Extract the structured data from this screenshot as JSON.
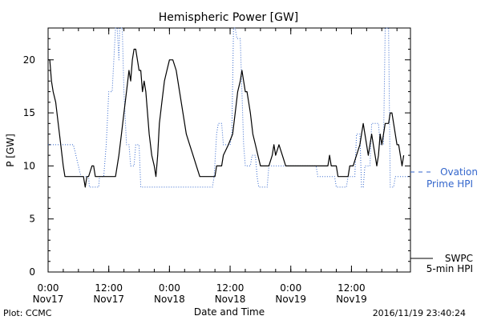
{
  "chart_data": {
    "type": "line",
    "title": "Hemispheric Power [GW]",
    "ylabel": "P [GW]",
    "xlabel": "Date and Time",
    "ylim": [
      0,
      23
    ],
    "xlim": [
      "2016-11-17 00:00",
      "2016-11-19 23:40"
    ],
    "grid": false,
    "legend_position": "right",
    "yticks": [
      0,
      5,
      10,
      15,
      20
    ],
    "xticks": [
      {
        "time": "2016-11-17 00:00",
        "line1": "0:00",
        "line2": "Nov17"
      },
      {
        "time": "2016-11-17 12:00",
        "line1": "12:00",
        "line2": "Nov17"
      },
      {
        "time": "2016-11-18 00:00",
        "line1": "0:00",
        "line2": "Nov18"
      },
      {
        "time": "2016-11-18 12:00",
        "line1": "12:00",
        "line2": "Nov18"
      },
      {
        "time": "2016-11-19 00:00",
        "line1": "0:00",
        "line2": "Nov19"
      },
      {
        "time": "2016-11-19 12:00",
        "line1": "12:00",
        "line2": "Nov19"
      }
    ],
    "series": [
      {
        "name": "SWPC 5-min HPI",
        "legend_lines": [
          "SWPC",
          "5-min HPI"
        ],
        "color": "#000000",
        "style": "solid",
        "points": [
          [
            "2016-11-17 00:00",
            20
          ],
          [
            "2016-11-17 00:20",
            20
          ],
          [
            "2016-11-17 00:40",
            18
          ],
          [
            "2016-11-17 01:00",
            17
          ],
          [
            "2016-11-17 01:30",
            16
          ],
          [
            "2016-11-17 02:00",
            14
          ],
          [
            "2016-11-17 02:30",
            12
          ],
          [
            "2016-11-17 03:00",
            10
          ],
          [
            "2016-11-17 03:20",
            9
          ],
          [
            "2016-11-17 07:00",
            9
          ],
          [
            "2016-11-17 07:20",
            8
          ],
          [
            "2016-11-17 07:40",
            9
          ],
          [
            "2016-11-17 08:00",
            9
          ],
          [
            "2016-11-17 08:40",
            10
          ],
          [
            "2016-11-17 09:00",
            10
          ],
          [
            "2016-11-17 09:20",
            9
          ],
          [
            "2016-11-17 13:20",
            9
          ],
          [
            "2016-11-17 13:40",
            10
          ],
          [
            "2016-11-17 14:00",
            11
          ],
          [
            "2016-11-17 14:30",
            13
          ],
          [
            "2016-11-17 15:00",
            15
          ],
          [
            "2016-11-17 15:30",
            17
          ],
          [
            "2016-11-17 16:00",
            19
          ],
          [
            "2016-11-17 16:20",
            18
          ],
          [
            "2016-11-17 16:40",
            20
          ],
          [
            "2016-11-17 17:00",
            21
          ],
          [
            "2016-11-17 17:20",
            21
          ],
          [
            "2016-11-17 17:40",
            20
          ],
          [
            "2016-11-17 18:00",
            19
          ],
          [
            "2016-11-17 18:20",
            19
          ],
          [
            "2016-11-17 18:40",
            17
          ],
          [
            "2016-11-17 19:00",
            18
          ],
          [
            "2016-11-17 19:20",
            17
          ],
          [
            "2016-11-17 19:40",
            15
          ],
          [
            "2016-11-17 20:00",
            13
          ],
          [
            "2016-11-17 20:30",
            11
          ],
          [
            "2016-11-17 21:00",
            10
          ],
          [
            "2016-11-17 21:20",
            9
          ],
          [
            "2016-11-17 21:40",
            11
          ],
          [
            "2016-11-17 22:00",
            14
          ],
          [
            "2016-11-17 22:30",
            16
          ],
          [
            "2016-11-17 23:00",
            18
          ],
          [
            "2016-11-17 23:30",
            19
          ],
          [
            "2016-11-18 00:00",
            20
          ],
          [
            "2016-11-18 00:40",
            20
          ],
          [
            "2016-11-18 01:20",
            19
          ],
          [
            "2016-11-18 02:00",
            17
          ],
          [
            "2016-11-18 02:40",
            15
          ],
          [
            "2016-11-18 03:20",
            13
          ],
          [
            "2016-11-18 04:00",
            12
          ],
          [
            "2016-11-18 04:40",
            11
          ],
          [
            "2016-11-18 05:20",
            10
          ],
          [
            "2016-11-18 06:00",
            9
          ],
          [
            "2016-11-18 09:00",
            9
          ],
          [
            "2016-11-18 09:20",
            10
          ],
          [
            "2016-11-18 10:20",
            10
          ],
          [
            "2016-11-18 10:40",
            11
          ],
          [
            "2016-11-18 11:40",
            12
          ],
          [
            "2016-11-18 12:30",
            13
          ],
          [
            "2016-11-18 13:00",
            15
          ],
          [
            "2016-11-18 13:30",
            17
          ],
          [
            "2016-11-18 14:00",
            18
          ],
          [
            "2016-11-18 14:20",
            19
          ],
          [
            "2016-11-18 14:40",
            18
          ],
          [
            "2016-11-18 15:00",
            17
          ],
          [
            "2016-11-18 15:20",
            17
          ],
          [
            "2016-11-18 15:40",
            16
          ],
          [
            "2016-11-18 16:00",
            15
          ],
          [
            "2016-11-18 16:30",
            13
          ],
          [
            "2016-11-18 17:00",
            12
          ],
          [
            "2016-11-18 17:30",
            11
          ],
          [
            "2016-11-18 18:00",
            10
          ],
          [
            "2016-11-18 18:20",
            10
          ],
          [
            "2016-11-18 18:40",
            10
          ],
          [
            "2016-11-18 19:40",
            10
          ],
          [
            "2016-11-18 20:20",
            11
          ],
          [
            "2016-11-18 20:40",
            12
          ],
          [
            "2016-11-18 21:00",
            11
          ],
          [
            "2016-11-18 21:40",
            12
          ],
          [
            "2016-11-18 22:20",
            11
          ],
          [
            "2016-11-18 23:00",
            10
          ],
          [
            "2016-11-19 00:00",
            10
          ],
          [
            "2016-11-19 07:20",
            10
          ],
          [
            "2016-11-19 07:40",
            11
          ],
          [
            "2016-11-19 08:00",
            10
          ],
          [
            "2016-11-19 09:00",
            10
          ],
          [
            "2016-11-19 09:20",
            9
          ],
          [
            "2016-11-19 11:20",
            9
          ],
          [
            "2016-11-19 11:40",
            10
          ],
          [
            "2016-11-19 12:20",
            10
          ],
          [
            "2016-11-19 13:00",
            11
          ],
          [
            "2016-11-19 13:40",
            12
          ],
          [
            "2016-11-19 14:00",
            13
          ],
          [
            "2016-11-19 14:20",
            14
          ],
          [
            "2016-11-19 14:40",
            13
          ],
          [
            "2016-11-19 15:00",
            12
          ],
          [
            "2016-11-19 15:20",
            11
          ],
          [
            "2016-11-19 15:40",
            12
          ],
          [
            "2016-11-19 16:00",
            13
          ],
          [
            "2016-11-19 16:20",
            12
          ],
          [
            "2016-11-19 16:40",
            11
          ],
          [
            "2016-11-19 17:00",
            10
          ],
          [
            "2016-11-19 17:20",
            11
          ],
          [
            "2016-11-19 17:40",
            13
          ],
          [
            "2016-11-19 18:00",
            12
          ],
          [
            "2016-11-19 18:20",
            13
          ],
          [
            "2016-11-19 18:40",
            14
          ],
          [
            "2016-11-19 19:20",
            14
          ],
          [
            "2016-11-19 19:40",
            15
          ],
          [
            "2016-11-19 20:00",
            15
          ],
          [
            "2016-11-19 20:20",
            14
          ],
          [
            "2016-11-19 20:40",
            13
          ],
          [
            "2016-11-19 21:00",
            12
          ],
          [
            "2016-11-19 21:20",
            12
          ],
          [
            "2016-11-19 21:40",
            11
          ],
          [
            "2016-11-19 22:00",
            10
          ],
          [
            "2016-11-19 22:20",
            11
          ]
        ]
      },
      {
        "name": "Ovation Prime HPI",
        "legend_lines": [
          "Ovation",
          "Prime HPI"
        ],
        "color": "#3366cc",
        "style": "dotted",
        "points": [
          [
            "2016-11-17 00:00",
            12
          ],
          [
            "2016-11-17 05:00",
            12
          ],
          [
            "2016-11-17 05:30",
            11
          ],
          [
            "2016-11-17 06:00",
            10
          ],
          [
            "2016-11-17 06:30",
            9
          ],
          [
            "2016-11-17 08:00",
            9
          ],
          [
            "2016-11-17 08:10",
            8
          ],
          [
            "2016-11-17 10:00",
            8
          ],
          [
            "2016-11-17 10:10",
            9
          ],
          [
            "2016-11-17 11:00",
            9
          ],
          [
            "2016-11-17 11:30",
            12
          ],
          [
            "2016-11-17 12:00",
            17
          ],
          [
            "2016-11-17 12:40",
            17
          ],
          [
            "2016-11-17 13:00",
            20
          ],
          [
            "2016-11-17 13:20",
            23
          ],
          [
            "2016-11-17 13:40",
            23
          ],
          [
            "2016-11-17 14:00",
            20
          ],
          [
            "2016-11-17 14:10",
            23
          ],
          [
            "2016-11-17 14:40",
            23
          ],
          [
            "2016-11-17 15:00",
            17
          ],
          [
            "2016-11-17 15:30",
            12
          ],
          [
            "2016-11-17 16:00",
            12
          ],
          [
            "2016-11-17 16:20",
            10
          ],
          [
            "2016-11-17 17:00",
            10
          ],
          [
            "2016-11-17 17:20",
            12
          ],
          [
            "2016-11-17 18:00",
            12
          ],
          [
            "2016-11-17 18:20",
            8
          ],
          [
            "2016-11-18 08:30",
            8
          ],
          [
            "2016-11-18 08:50",
            9
          ],
          [
            "2016-11-18 09:20",
            13
          ],
          [
            "2016-11-18 09:40",
            14
          ],
          [
            "2016-11-18 10:20",
            14
          ],
          [
            "2016-11-18 10:40",
            12
          ],
          [
            "2016-11-18 12:00",
            12
          ],
          [
            "2016-11-18 12:20",
            13
          ],
          [
            "2016-11-18 12:40",
            23
          ],
          [
            "2016-11-18 13:00",
            23
          ],
          [
            "2016-11-18 13:20",
            22
          ],
          [
            "2016-11-18 14:00",
            22
          ],
          [
            "2016-11-18 14:20",
            17
          ],
          [
            "2016-11-18 14:40",
            12
          ],
          [
            "2016-11-18 15:00",
            10
          ],
          [
            "2016-11-18 16:00",
            10
          ],
          [
            "2016-11-18 16:20",
            11
          ],
          [
            "2016-11-18 17:00",
            11
          ],
          [
            "2016-11-18 17:20",
            9
          ],
          [
            "2016-11-18 17:40",
            8
          ],
          [
            "2016-11-18 19:20",
            8
          ],
          [
            "2016-11-18 19:40",
            10
          ],
          [
            "2016-11-19 05:00",
            10
          ],
          [
            "2016-11-19 05:20",
            9
          ],
          [
            "2016-11-19 08:40",
            9
          ],
          [
            "2016-11-19 09:00",
            8
          ],
          [
            "2016-11-19 11:00",
            8
          ],
          [
            "2016-11-19 11:20",
            9
          ],
          [
            "2016-11-19 12:40",
            9
          ],
          [
            "2016-11-19 13:00",
            13
          ],
          [
            "2016-11-19 13:40",
            13
          ],
          [
            "2016-11-19 14:00",
            8
          ],
          [
            "2016-11-19 14:20",
            8
          ],
          [
            "2016-11-19 14:40",
            10
          ],
          [
            "2016-11-19 15:40",
            10
          ],
          [
            "2016-11-19 16:00",
            14
          ],
          [
            "2016-11-19 17:20",
            14
          ],
          [
            "2016-11-19 17:40",
            12
          ],
          [
            "2016-11-19 18:20",
            12
          ],
          [
            "2016-11-19 18:40",
            23
          ],
          [
            "2016-11-19 19:20",
            23
          ],
          [
            "2016-11-19 19:40",
            8
          ],
          [
            "2016-11-19 20:20",
            8
          ],
          [
            "2016-11-19 20:40",
            9
          ],
          [
            "2016-11-19 23:40",
            9
          ]
        ]
      }
    ]
  },
  "footer": {
    "plot_credit": "Plot: CCMC",
    "timestamp": "2016/11/19 23:40:24"
  }
}
